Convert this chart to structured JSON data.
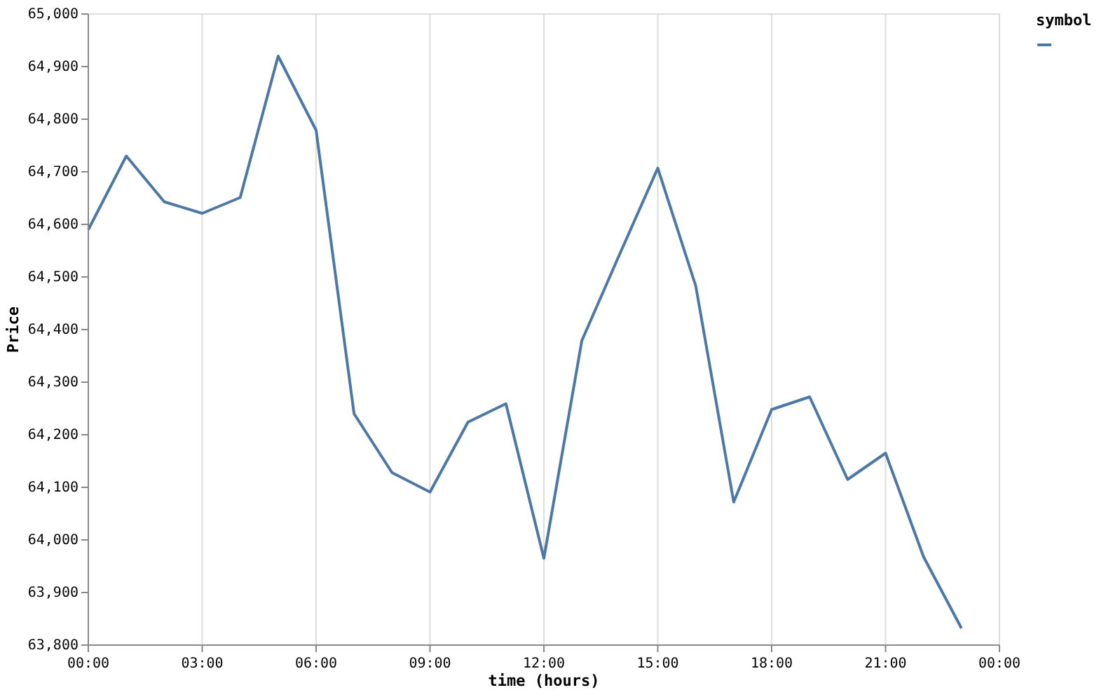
{
  "chart_data": {
    "type": "line",
    "xlabel": "time (hours)",
    "ylabel": "Price",
    "legend_title": "symbol",
    "x": [
      0,
      1,
      2,
      3,
      4,
      5,
      6,
      7,
      8,
      9,
      10,
      11,
      12,
      13,
      14,
      15,
      16,
      17,
      18,
      19,
      20,
      21,
      22,
      23
    ],
    "series": [
      {
        "color": "#4c78a8",
        "values": [
          64590,
          64730,
          64643,
          64621,
          64651,
          64920,
          64779,
          64240,
          64128,
          64091,
          64224,
          64259,
          63965,
          64379,
          64544,
          64707,
          64483,
          64072,
          64248,
          64272,
          64115,
          64165,
          63968,
          63832
        ]
      }
    ],
    "xlim": [
      0,
      24
    ],
    "xticks": [
      {
        "value": 0,
        "label": "00:00"
      },
      {
        "value": 3,
        "label": "03:00"
      },
      {
        "value": 6,
        "label": "06:00"
      },
      {
        "value": 9,
        "label": "09:00"
      },
      {
        "value": 12,
        "label": "12:00"
      },
      {
        "value": 15,
        "label": "15:00"
      },
      {
        "value": 18,
        "label": "18:00"
      },
      {
        "value": 21,
        "label": "21:00"
      },
      {
        "value": 24,
        "label": "00:00"
      }
    ],
    "ylim": [
      63800,
      65000
    ],
    "yticks": [
      {
        "value": 63800,
        "label": "63,800"
      },
      {
        "value": 63900,
        "label": "63,900"
      },
      {
        "value": 64000,
        "label": "64,000"
      },
      {
        "value": 64100,
        "label": "64,100"
      },
      {
        "value": 64200,
        "label": "64,200"
      },
      {
        "value": 64300,
        "label": "64,300"
      },
      {
        "value": 64400,
        "label": "64,400"
      },
      {
        "value": 64500,
        "label": "64,500"
      },
      {
        "value": 64600,
        "label": "64,600"
      },
      {
        "value": 64700,
        "label": "64,700"
      },
      {
        "value": 64800,
        "label": "64,800"
      },
      {
        "value": 64900,
        "label": "64,900"
      },
      {
        "value": 65000,
        "label": "65,000"
      }
    ],
    "grid": "x",
    "line_style": "solid",
    "marker": "none"
  }
}
